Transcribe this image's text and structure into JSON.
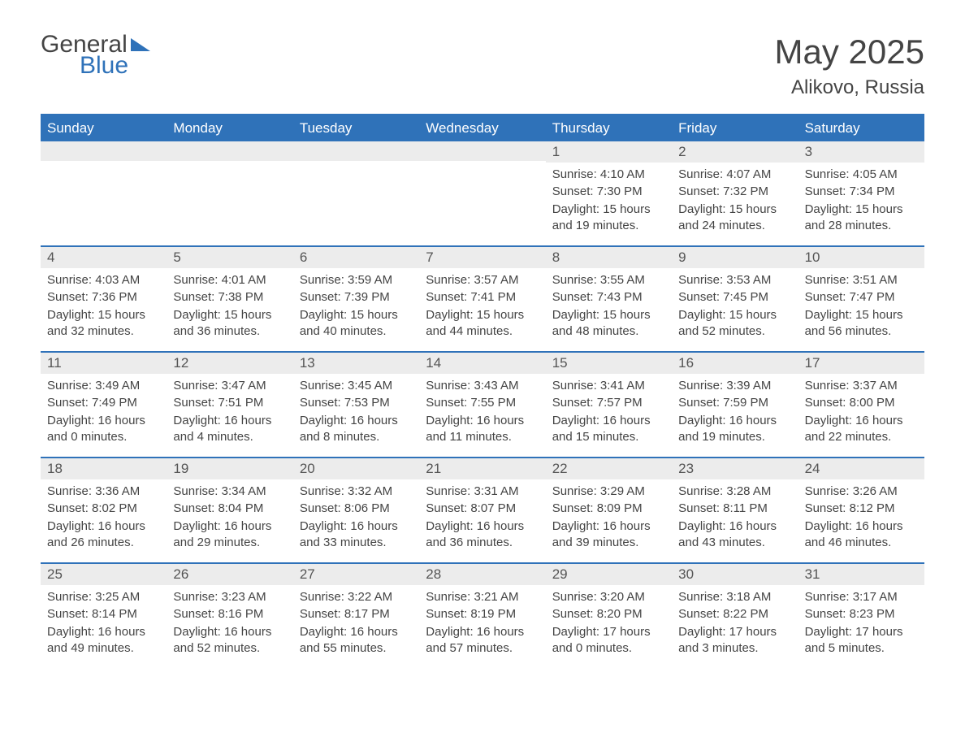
{
  "logo": {
    "text1": "General",
    "text2": "Blue"
  },
  "title": "May 2025",
  "location": "Alikovo, Russia",
  "colors": {
    "header_bg": "#2f72b9",
    "header_text": "#ffffff",
    "daynum_bg": "#ececec",
    "text": "#444444",
    "border": "#2f72b9",
    "background": "#ffffff",
    "logo_blue": "#2f72b9"
  },
  "day_names": [
    "Sunday",
    "Monday",
    "Tuesday",
    "Wednesday",
    "Thursday",
    "Friday",
    "Saturday"
  ],
  "weeks": [
    [
      null,
      null,
      null,
      null,
      {
        "n": "1",
        "sunrise": "Sunrise: 4:10 AM",
        "sunset": "Sunset: 7:30 PM",
        "daylight": "Daylight: 15 hours and 19 minutes."
      },
      {
        "n": "2",
        "sunrise": "Sunrise: 4:07 AM",
        "sunset": "Sunset: 7:32 PM",
        "daylight": "Daylight: 15 hours and 24 minutes."
      },
      {
        "n": "3",
        "sunrise": "Sunrise: 4:05 AM",
        "sunset": "Sunset: 7:34 PM",
        "daylight": "Daylight: 15 hours and 28 minutes."
      }
    ],
    [
      {
        "n": "4",
        "sunrise": "Sunrise: 4:03 AM",
        "sunset": "Sunset: 7:36 PM",
        "daylight": "Daylight: 15 hours and 32 minutes."
      },
      {
        "n": "5",
        "sunrise": "Sunrise: 4:01 AM",
        "sunset": "Sunset: 7:38 PM",
        "daylight": "Daylight: 15 hours and 36 minutes."
      },
      {
        "n": "6",
        "sunrise": "Sunrise: 3:59 AM",
        "sunset": "Sunset: 7:39 PM",
        "daylight": "Daylight: 15 hours and 40 minutes."
      },
      {
        "n": "7",
        "sunrise": "Sunrise: 3:57 AM",
        "sunset": "Sunset: 7:41 PM",
        "daylight": "Daylight: 15 hours and 44 minutes."
      },
      {
        "n": "8",
        "sunrise": "Sunrise: 3:55 AM",
        "sunset": "Sunset: 7:43 PM",
        "daylight": "Daylight: 15 hours and 48 minutes."
      },
      {
        "n": "9",
        "sunrise": "Sunrise: 3:53 AM",
        "sunset": "Sunset: 7:45 PM",
        "daylight": "Daylight: 15 hours and 52 minutes."
      },
      {
        "n": "10",
        "sunrise": "Sunrise: 3:51 AM",
        "sunset": "Sunset: 7:47 PM",
        "daylight": "Daylight: 15 hours and 56 minutes."
      }
    ],
    [
      {
        "n": "11",
        "sunrise": "Sunrise: 3:49 AM",
        "sunset": "Sunset: 7:49 PM",
        "daylight": "Daylight: 16 hours and 0 minutes."
      },
      {
        "n": "12",
        "sunrise": "Sunrise: 3:47 AM",
        "sunset": "Sunset: 7:51 PM",
        "daylight": "Daylight: 16 hours and 4 minutes."
      },
      {
        "n": "13",
        "sunrise": "Sunrise: 3:45 AM",
        "sunset": "Sunset: 7:53 PM",
        "daylight": "Daylight: 16 hours and 8 minutes."
      },
      {
        "n": "14",
        "sunrise": "Sunrise: 3:43 AM",
        "sunset": "Sunset: 7:55 PM",
        "daylight": "Daylight: 16 hours and 11 minutes."
      },
      {
        "n": "15",
        "sunrise": "Sunrise: 3:41 AM",
        "sunset": "Sunset: 7:57 PM",
        "daylight": "Daylight: 16 hours and 15 minutes."
      },
      {
        "n": "16",
        "sunrise": "Sunrise: 3:39 AM",
        "sunset": "Sunset: 7:59 PM",
        "daylight": "Daylight: 16 hours and 19 minutes."
      },
      {
        "n": "17",
        "sunrise": "Sunrise: 3:37 AM",
        "sunset": "Sunset: 8:00 PM",
        "daylight": "Daylight: 16 hours and 22 minutes."
      }
    ],
    [
      {
        "n": "18",
        "sunrise": "Sunrise: 3:36 AM",
        "sunset": "Sunset: 8:02 PM",
        "daylight": "Daylight: 16 hours and 26 minutes."
      },
      {
        "n": "19",
        "sunrise": "Sunrise: 3:34 AM",
        "sunset": "Sunset: 8:04 PM",
        "daylight": "Daylight: 16 hours and 29 minutes."
      },
      {
        "n": "20",
        "sunrise": "Sunrise: 3:32 AM",
        "sunset": "Sunset: 8:06 PM",
        "daylight": "Daylight: 16 hours and 33 minutes."
      },
      {
        "n": "21",
        "sunrise": "Sunrise: 3:31 AM",
        "sunset": "Sunset: 8:07 PM",
        "daylight": "Daylight: 16 hours and 36 minutes."
      },
      {
        "n": "22",
        "sunrise": "Sunrise: 3:29 AM",
        "sunset": "Sunset: 8:09 PM",
        "daylight": "Daylight: 16 hours and 39 minutes."
      },
      {
        "n": "23",
        "sunrise": "Sunrise: 3:28 AM",
        "sunset": "Sunset: 8:11 PM",
        "daylight": "Daylight: 16 hours and 43 minutes."
      },
      {
        "n": "24",
        "sunrise": "Sunrise: 3:26 AM",
        "sunset": "Sunset: 8:12 PM",
        "daylight": "Daylight: 16 hours and 46 minutes."
      }
    ],
    [
      {
        "n": "25",
        "sunrise": "Sunrise: 3:25 AM",
        "sunset": "Sunset: 8:14 PM",
        "daylight": "Daylight: 16 hours and 49 minutes."
      },
      {
        "n": "26",
        "sunrise": "Sunrise: 3:23 AM",
        "sunset": "Sunset: 8:16 PM",
        "daylight": "Daylight: 16 hours and 52 minutes."
      },
      {
        "n": "27",
        "sunrise": "Sunrise: 3:22 AM",
        "sunset": "Sunset: 8:17 PM",
        "daylight": "Daylight: 16 hours and 55 minutes."
      },
      {
        "n": "28",
        "sunrise": "Sunrise: 3:21 AM",
        "sunset": "Sunset: 8:19 PM",
        "daylight": "Daylight: 16 hours and 57 minutes."
      },
      {
        "n": "29",
        "sunrise": "Sunrise: 3:20 AM",
        "sunset": "Sunset: 8:20 PM",
        "daylight": "Daylight: 17 hours and 0 minutes."
      },
      {
        "n": "30",
        "sunrise": "Sunrise: 3:18 AM",
        "sunset": "Sunset: 8:22 PM",
        "daylight": "Daylight: 17 hours and 3 minutes."
      },
      {
        "n": "31",
        "sunrise": "Sunrise: 3:17 AM",
        "sunset": "Sunset: 8:23 PM",
        "daylight": "Daylight: 17 hours and 5 minutes."
      }
    ]
  ]
}
